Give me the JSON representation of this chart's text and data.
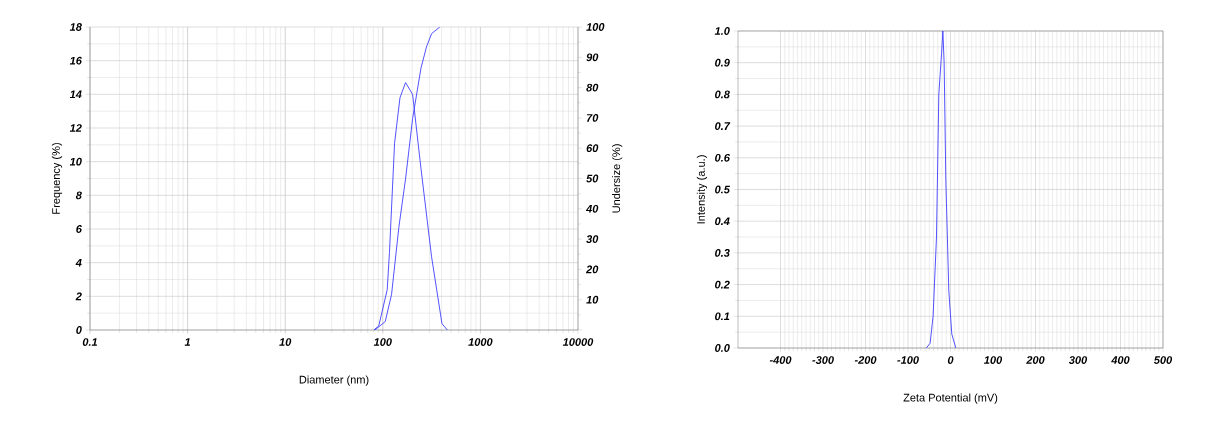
{
  "chart_data": [
    {
      "type": "line",
      "xlabel": "Diameter (nm)",
      "ylabel": "Frequency (%)",
      "y2label": "Undersize (%)",
      "log": "x",
      "grid": true,
      "xlim": [
        0.1,
        10000
      ],
      "xticks": [
        0.1,
        1,
        10,
        100,
        1000,
        10000
      ],
      "ylim": [
        0,
        18
      ],
      "yticks": [
        0,
        2,
        4,
        6,
        8,
        10,
        12,
        14,
        16,
        18
      ],
      "y2lim": [
        0,
        100
      ],
      "y2ticks": [
        {
          "value": 0,
          "label": null
        },
        10,
        20,
        30,
        40,
        50,
        60,
        70,
        80,
        90,
        100
      ],
      "series": [
        {
          "color": "#4040ff",
          "x": [
            81,
            91,
            111,
            117,
            132,
            150,
            171,
            202,
            246,
            316,
            404,
            459
          ],
          "values": [
            0,
            0.25,
            2.4,
            4.6,
            11.1,
            13.8,
            14.7,
            14.0,
            9.6,
            4.35,
            0.37,
            0
          ]
        },
        {
          "color": "#4040ff",
          "axis": "y2",
          "x": [
            83,
            106,
            123,
            146,
            171,
            202,
            246,
            280,
            316,
            384
          ],
          "values": [
            0,
            2.8,
            11.8,
            33.9,
            49.8,
            69.8,
            86.4,
            93.4,
            97.8,
            100
          ]
        }
      ]
    },
    {
      "type": "line",
      "xlabel": "Zeta Potential (mV)",
      "ylabel": "Intensity (a.u.)",
      "grid": true,
      "xlim": [
        -500,
        500
      ],
      "xticks": [
        -400,
        -300,
        -200,
        -100,
        0,
        100,
        200,
        300,
        400,
        500
      ],
      "ylim": [
        0,
        1
      ],
      "yticks": [
        {
          "value": 0,
          "label": "0.0"
        },
        0.1,
        0.2,
        0.3,
        0.4,
        0.5,
        0.6,
        0.7,
        0.8,
        0.9,
        {
          "value": 1,
          "label": "1.0"
        }
      ],
      "series": [
        {
          "color": "#4040ff",
          "x": [
            -57,
            -48,
            -41,
            -33,
            -27.5,
            -21,
            -18,
            -15,
            -11,
            -4,
            3,
            12.5
          ],
          "values": [
            0,
            0.015,
            0.1,
            0.35,
            0.8,
            0.93,
            1.0,
            0.9,
            0.53,
            0.18,
            0.044,
            0
          ]
        }
      ]
    }
  ]
}
